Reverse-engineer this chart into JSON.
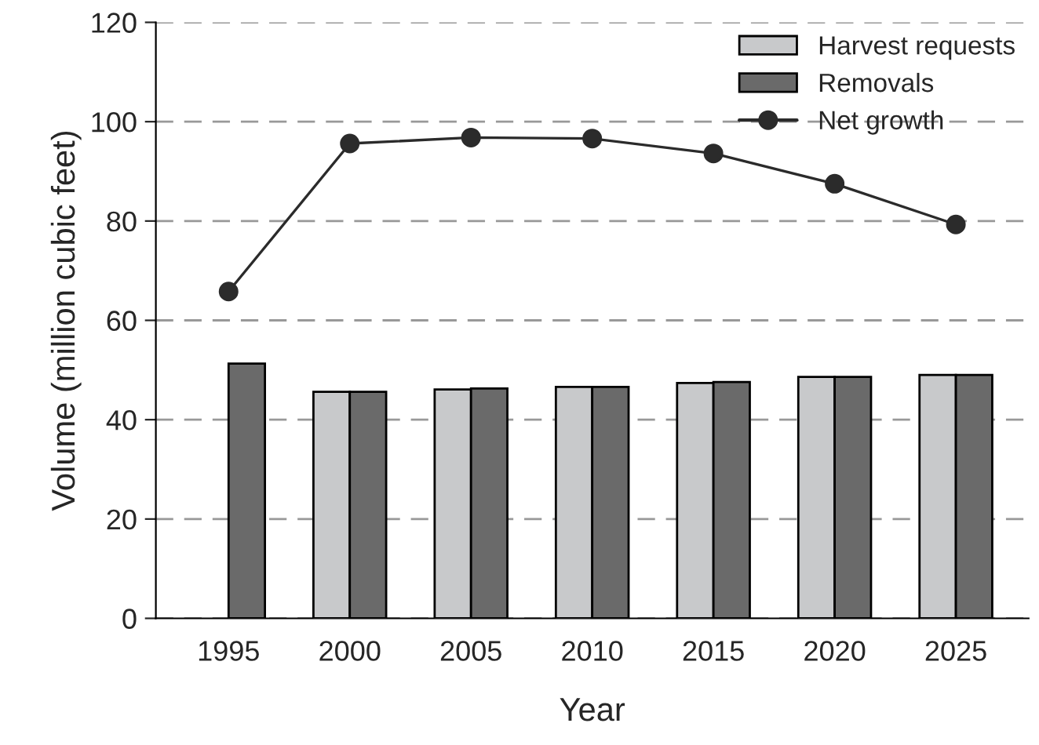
{
  "chart_data": {
    "type": "bar",
    "xlabel": "Year",
    "ylabel": "Volume (million cubic feet)",
    "categories": [
      "1995",
      "2000",
      "2005",
      "2010",
      "2015",
      "2020",
      "2025"
    ],
    "series": [
      {
        "name": "Harvest requests",
        "color": "#c8c9cb",
        "values": [
          null,
          45.6,
          46.1,
          46.6,
          47.4,
          48.6,
          49.0
        ]
      },
      {
        "name": "Removals",
        "color": "#6a6a6a",
        "values": [
          51.3,
          45.6,
          46.3,
          46.6,
          47.6,
          48.6,
          49.0
        ]
      },
      {
        "name": "Net growth",
        "type": "line",
        "color": "#2b2b2b",
        "marker": "circle",
        "values": [
          65.8,
          95.6,
          96.8,
          96.6,
          93.6,
          87.5,
          79.3
        ]
      }
    ],
    "ylim": [
      0,
      120
    ],
    "yticks": [
      0,
      20,
      40,
      60,
      80,
      100,
      120
    ],
    "grid": "y",
    "legend": "top right"
  }
}
